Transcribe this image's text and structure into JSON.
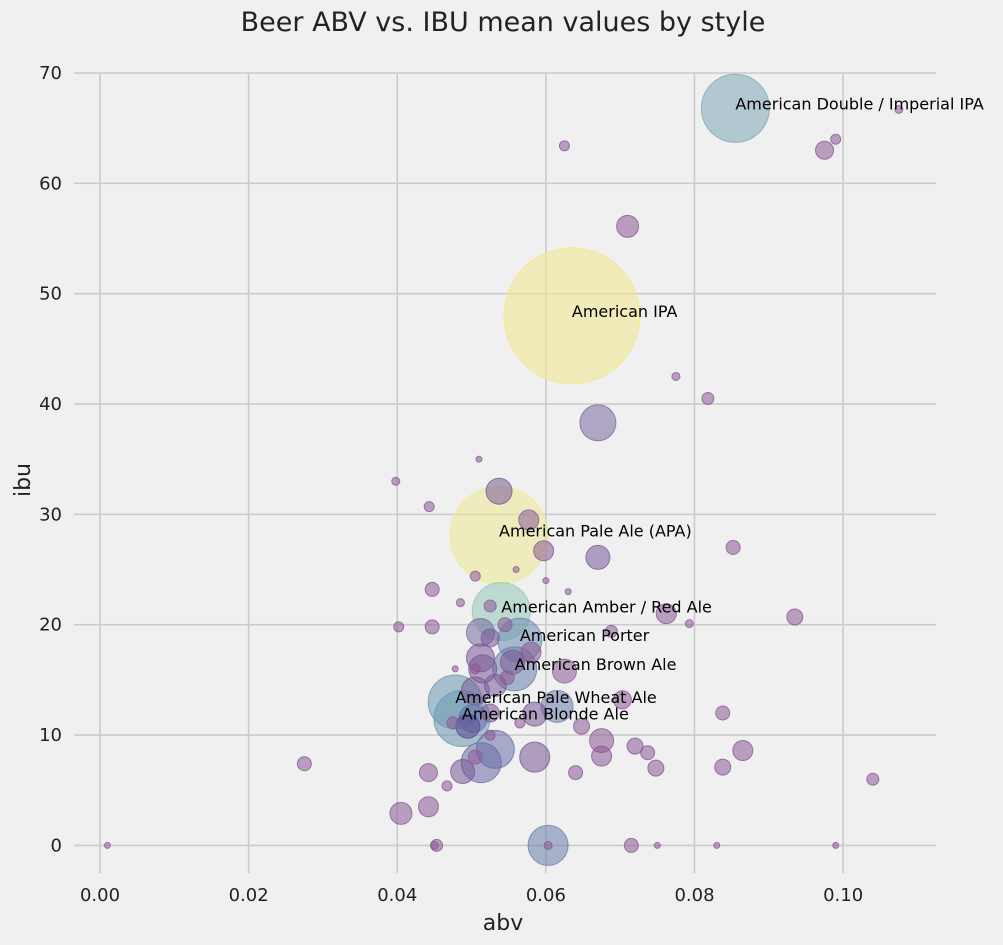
{
  "chart_data": {
    "type": "scatter",
    "title": "Beer ABV vs. IBU mean values by style",
    "xlabel": "abv",
    "ylabel": "ibu",
    "xlim": [
      -0.0035,
      0.1125
    ],
    "ylim": [
      -2.5,
      70
    ],
    "xticks": [
      "0.00",
      "0.02",
      "0.04",
      "0.06",
      "0.08",
      "0.10"
    ],
    "yticks": [
      "0",
      "10",
      "20",
      "30",
      "40",
      "50",
      "60",
      "70"
    ],
    "grid": true,
    "size_encoding": "bubble area proportional to count of beers per style",
    "color_encoding": "viridis colormap by count (purple = few, yellow = many)",
    "points": [
      {
        "x": 0.0855,
        "y": 66.8,
        "r": 34,
        "color": "#7fa8b8",
        "label": "American Double / Imperial IPA"
      },
      {
        "x": 0.1075,
        "y": 66.7,
        "r": 4,
        "color": "#8a5a96"
      },
      {
        "x": 0.099,
        "y": 64.0,
        "r": 5,
        "color": "#8a5a96"
      },
      {
        "x": 0.0975,
        "y": 63.0,
        "r": 9,
        "color": "#8a5a96"
      },
      {
        "x": 0.0625,
        "y": 63.4,
        "r": 5,
        "color": "#8a5a96"
      },
      {
        "x": 0.071,
        "y": 56.1,
        "r": 11,
        "color": "#8a5a96"
      },
      {
        "x": 0.0635,
        "y": 48.0,
        "r": 68,
        "color": "#f0e78a",
        "label": "American IPA"
      },
      {
        "x": 0.0775,
        "y": 42.5,
        "r": 4,
        "color": "#8a5a96"
      },
      {
        "x": 0.0818,
        "y": 40.5,
        "r": 6,
        "color": "#8a5a96"
      },
      {
        "x": 0.067,
        "y": 38.3,
        "r": 18,
        "color": "#7a6aa0"
      },
      {
        "x": 0.051,
        "y": 35.0,
        "r": 3,
        "color": "#8a5a96"
      },
      {
        "x": 0.0398,
        "y": 33.0,
        "r": 4,
        "color": "#8a5a96"
      },
      {
        "x": 0.0537,
        "y": 32.1,
        "r": 13,
        "color": "#7a5a98"
      },
      {
        "x": 0.0443,
        "y": 30.7,
        "r": 5,
        "color": "#8a5a96"
      },
      {
        "x": 0.0577,
        "y": 29.5,
        "r": 10,
        "color": "#8a5a96"
      },
      {
        "x": 0.0537,
        "y": 28.1,
        "r": 49,
        "color": "#ecea92",
        "label": "American Pale Ale (APA)"
      },
      {
        "x": 0.0852,
        "y": 27.0,
        "r": 7,
        "color": "#8a5a96"
      },
      {
        "x": 0.0597,
        "y": 26.7,
        "r": 10,
        "color": "#8a5a96"
      },
      {
        "x": 0.067,
        "y": 26.1,
        "r": 12,
        "color": "#7a5a98"
      },
      {
        "x": 0.056,
        "y": 25.0,
        "r": 3,
        "color": "#8a5a96"
      },
      {
        "x": 0.0505,
        "y": 24.4,
        "r": 5,
        "color": "#8a5a96"
      },
      {
        "x": 0.06,
        "y": 24.0,
        "r": 3,
        "color": "#8a5a96"
      },
      {
        "x": 0.0447,
        "y": 23.2,
        "r": 7,
        "color": "#8a5a96"
      },
      {
        "x": 0.063,
        "y": 23.0,
        "r": 3,
        "color": "#8a5a96"
      },
      {
        "x": 0.0485,
        "y": 22.0,
        "r": 4,
        "color": "#8a5a96"
      },
      {
        "x": 0.054,
        "y": 21.2,
        "r": 29,
        "color": "#92c8b8",
        "label": "American Amber / Red Ale"
      },
      {
        "x": 0.0525,
        "y": 21.7,
        "r": 6,
        "color": "#8a5a96"
      },
      {
        "x": 0.0762,
        "y": 21.0,
        "r": 10,
        "color": "#8a5a96"
      },
      {
        "x": 0.0935,
        "y": 20.7,
        "r": 8,
        "color": "#8a5a96"
      },
      {
        "x": 0.0793,
        "y": 20.1,
        "r": 4,
        "color": "#8a5a96"
      },
      {
        "x": 0.0402,
        "y": 19.8,
        "r": 5,
        "color": "#8a5a96"
      },
      {
        "x": 0.0447,
        "y": 19.8,
        "r": 7,
        "color": "#8a5a96"
      },
      {
        "x": 0.0545,
        "y": 20.0,
        "r": 7,
        "color": "#8a5a96"
      },
      {
        "x": 0.0512,
        "y": 19.3,
        "r": 14,
        "color": "#7a6aa0"
      },
      {
        "x": 0.0688,
        "y": 19.4,
        "r": 6,
        "color": "#8a5a96"
      },
      {
        "x": 0.0525,
        "y": 18.8,
        "r": 9,
        "color": "#7a5a98"
      },
      {
        "x": 0.0565,
        "y": 18.6,
        "r": 22,
        "color": "#6a8ab0",
        "label": "American Porter"
      },
      {
        "x": 0.058,
        "y": 17.5,
        "r": 10,
        "color": "#8a5a96"
      },
      {
        "x": 0.0512,
        "y": 17.0,
        "r": 14,
        "color": "#7a5a98"
      },
      {
        "x": 0.0555,
        "y": 16.6,
        "r": 12,
        "color": "#7a5a98"
      },
      {
        "x": 0.0558,
        "y": 16.0,
        "r": 22,
        "color": "#6a80aa",
        "label": "American Brown Ale"
      },
      {
        "x": 0.0515,
        "y": 16.0,
        "r": 14,
        "color": "#7a5a98"
      },
      {
        "x": 0.0625,
        "y": 15.8,
        "r": 12,
        "color": "#8a5a96"
      },
      {
        "x": 0.0505,
        "y": 16.0,
        "r": 5,
        "color": "#8a5a96"
      },
      {
        "x": 0.0478,
        "y": 16.0,
        "r": 3,
        "color": "#8a5a96"
      },
      {
        "x": 0.0548,
        "y": 15.2,
        "r": 7,
        "color": "#8a5a96"
      },
      {
        "x": 0.0532,
        "y": 14.5,
        "r": 11,
        "color": "#7a5a98"
      },
      {
        "x": 0.0505,
        "y": 14.0,
        "r": 14,
        "color": "#7a5a98"
      },
      {
        "x": 0.0478,
        "y": 13.0,
        "r": 27,
        "color": "#6a98b0",
        "label": "American Pale Wheat Ale"
      },
      {
        "x": 0.0703,
        "y": 13.2,
        "r": 9,
        "color": "#8a5a96"
      },
      {
        "x": 0.0615,
        "y": 12.6,
        "r": 16,
        "color": "#6a80aa"
      },
      {
        "x": 0.0525,
        "y": 12.0,
        "r": 9,
        "color": "#7a5a98"
      },
      {
        "x": 0.0838,
        "y": 12.0,
        "r": 7,
        "color": "#8a5a96"
      },
      {
        "x": 0.0585,
        "y": 11.9,
        "r": 12,
        "color": "#7a5a98"
      },
      {
        "x": 0.0487,
        "y": 11.5,
        "r": 28,
        "color": "#6a98b0",
        "label": "American Blonde Ale"
      },
      {
        "x": 0.0502,
        "y": 11.5,
        "r": 14,
        "color": "#6a70a8"
      },
      {
        "x": 0.0475,
        "y": 11.1,
        "r": 6,
        "color": "#8a5a96"
      },
      {
        "x": 0.0565,
        "y": 11.1,
        "r": 5,
        "color": "#8a5a96"
      },
      {
        "x": 0.0495,
        "y": 10.8,
        "r": 12,
        "color": "#5a4a90"
      },
      {
        "x": 0.0648,
        "y": 10.8,
        "r": 8,
        "color": "#8a5a96"
      },
      {
        "x": 0.0525,
        "y": 10.0,
        "r": 5,
        "color": "#8a5a96"
      },
      {
        "x": 0.0675,
        "y": 9.5,
        "r": 12,
        "color": "#8a5a96"
      },
      {
        "x": 0.072,
        "y": 9.0,
        "r": 8,
        "color": "#8a5a96"
      },
      {
        "x": 0.0532,
        "y": 8.7,
        "r": 19,
        "color": "#6a70a8"
      },
      {
        "x": 0.0865,
        "y": 8.6,
        "r": 10,
        "color": "#8a5a96"
      },
      {
        "x": 0.0737,
        "y": 8.4,
        "r": 7,
        "color": "#8a5a96"
      },
      {
        "x": 0.0675,
        "y": 8.1,
        "r": 10,
        "color": "#8a5a96"
      },
      {
        "x": 0.0505,
        "y": 8.0,
        "r": 7,
        "color": "#8a5a96"
      },
      {
        "x": 0.0585,
        "y": 8.0,
        "r": 15,
        "color": "#7a5a98"
      },
      {
        "x": 0.0513,
        "y": 7.5,
        "r": 20,
        "color": "#6a6aa6"
      },
      {
        "x": 0.0275,
        "y": 7.4,
        "r": 7,
        "color": "#8a5a96"
      },
      {
        "x": 0.0838,
        "y": 7.1,
        "r": 8,
        "color": "#8a5a96"
      },
      {
        "x": 0.0748,
        "y": 7.0,
        "r": 8,
        "color": "#8a5a96"
      },
      {
        "x": 0.0488,
        "y": 6.7,
        "r": 12,
        "color": "#7a5a98"
      },
      {
        "x": 0.0442,
        "y": 6.6,
        "r": 9,
        "color": "#8a5a96"
      },
      {
        "x": 0.064,
        "y": 6.6,
        "r": 7,
        "color": "#8a5a96"
      },
      {
        "x": 0.104,
        "y": 6.0,
        "r": 6,
        "color": "#8a5a96"
      },
      {
        "x": 0.0467,
        "y": 5.4,
        "r": 5,
        "color": "#8a5a96"
      },
      {
        "x": 0.0442,
        "y": 3.5,
        "r": 10,
        "color": "#8a5a96"
      },
      {
        "x": 0.0405,
        "y": 2.9,
        "r": 11,
        "color": "#8a5a96"
      },
      {
        "x": 0.001,
        "y": 0.0,
        "r": 3,
        "color": "#8a5a96"
      },
      {
        "x": 0.045,
        "y": 0.0,
        "r": 4,
        "color": "#8a5a96"
      },
      {
        "x": 0.0453,
        "y": 0.0,
        "r": 6,
        "color": "#8a5a96"
      },
      {
        "x": 0.0603,
        "y": 0.0,
        "r": 20,
        "color": "#6a80aa"
      },
      {
        "x": 0.0603,
        "y": 0.0,
        "r": 4,
        "color": "#8a5a96"
      },
      {
        "x": 0.0715,
        "y": 0.0,
        "r": 7,
        "color": "#8a5a96"
      },
      {
        "x": 0.075,
        "y": 0.0,
        "r": 3,
        "color": "#8a5a96"
      },
      {
        "x": 0.083,
        "y": 0.0,
        "r": 3,
        "color": "#8a5a96"
      },
      {
        "x": 0.099,
        "y": 0.0,
        "r": 3,
        "color": "#8a5a96"
      }
    ]
  }
}
